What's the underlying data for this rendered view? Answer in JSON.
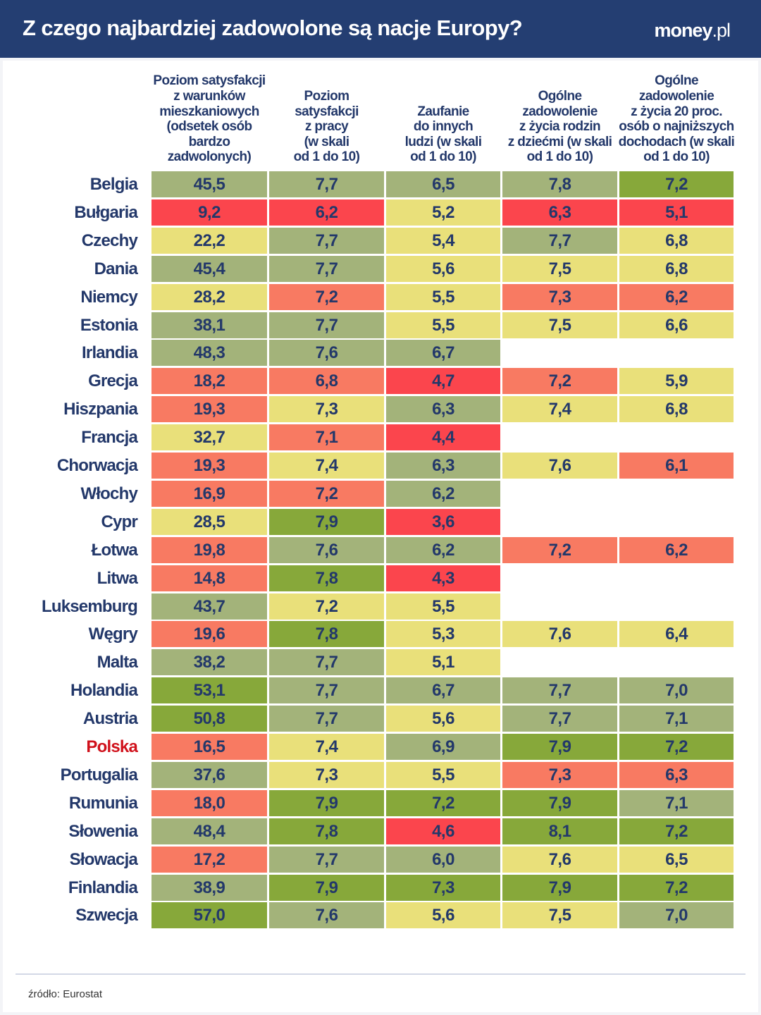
{
  "header": {
    "title": "Z czego najbardziej zadowolone są nacje Europy?",
    "logo_main": "money",
    "logo_suffix": ".pl"
  },
  "footer": {
    "source": "źródło: Eurostat"
  },
  "colors": {
    "g": "#87a83a",
    "s": "#a3b37a",
    "y": "#e9e07a",
    "o": "#f87a62",
    "r": "#fb454d",
    "highlight_country": "#d0111b"
  },
  "chart_data": {
    "type": "table",
    "columns": [
      "Poziom satysfakcji\nz warunków\nmieszkaniowych\n(odsetek osób bardzo\nzadwolonych)",
      "Poziom\nsatysfakcji\nz pracy\n(w skali\nod 1 do 10)",
      "Zaufanie\ndo innych\nludzi (w skali\nod 1 do 10)",
      "Ogólne\nzadowolenie\nz życia rodzin\nz dziećmi (w skali\nod 1 do 10)",
      "Ogólne\nzadowolenie\nz życia 20 proc.\nosób o najniższych\ndochodach (w skali\nod 1 do 10)"
    ],
    "highlight": "Polska",
    "rows": [
      {
        "country": "Belgia",
        "values": [
          "45,5",
          "7,7",
          "6,5",
          "7,8",
          "7,2"
        ],
        "levels": [
          "s",
          "s",
          "s",
          "s",
          "g"
        ]
      },
      {
        "country": "Bułgaria",
        "values": [
          "9,2",
          "6,2",
          "5,2",
          "6,3",
          "5,1"
        ],
        "levels": [
          "r",
          "r",
          "y",
          "r",
          "r"
        ]
      },
      {
        "country": "Czechy",
        "values": [
          "22,2",
          "7,7",
          "5,4",
          "7,7",
          "6,8"
        ],
        "levels": [
          "y",
          "s",
          "y",
          "s",
          "y"
        ]
      },
      {
        "country": "Dania",
        "values": [
          "45,4",
          "7,7",
          "5,6",
          "7,5",
          "6,8"
        ],
        "levels": [
          "s",
          "s",
          "y",
          "y",
          "y"
        ]
      },
      {
        "country": "Niemcy",
        "values": [
          "28,2",
          "7,2",
          "5,5",
          "7,3",
          "6,2"
        ],
        "levels": [
          "y",
          "o",
          "y",
          "o",
          "o"
        ]
      },
      {
        "country": "Estonia",
        "values": [
          "38,1",
          "7,7",
          "5,5",
          "7,5",
          "6,6"
        ],
        "levels": [
          "s",
          "s",
          "y",
          "y",
          "y"
        ]
      },
      {
        "country": "Irlandia",
        "values": [
          "48,3",
          "7,6",
          "6,7",
          null,
          null
        ],
        "levels": [
          "s",
          "s",
          "s",
          null,
          null
        ]
      },
      {
        "country": "Grecja",
        "values": [
          "18,2",
          "6,8",
          "4,7",
          "7,2",
          "5,9"
        ],
        "levels": [
          "o",
          "o",
          "r",
          "o",
          "y"
        ]
      },
      {
        "country": "Hiszpania",
        "values": [
          "19,3",
          "7,3",
          "6,3",
          "7,4",
          "6,8"
        ],
        "levels": [
          "o",
          "y",
          "s",
          "y",
          "y"
        ]
      },
      {
        "country": "Francja",
        "values": [
          "32,7",
          "7,1",
          "4,4",
          null,
          null
        ],
        "levels": [
          "y",
          "o",
          "r",
          null,
          null
        ]
      },
      {
        "country": "Chorwacja",
        "values": [
          "19,3",
          "7,4",
          "6,3",
          "7,6",
          "6,1"
        ],
        "levels": [
          "o",
          "y",
          "s",
          "y",
          "o"
        ]
      },
      {
        "country": "Włochy",
        "values": [
          "16,9",
          "7,2",
          "6,2",
          null,
          null
        ],
        "levels": [
          "o",
          "o",
          "s",
          null,
          null
        ]
      },
      {
        "country": "Cypr",
        "values": [
          "28,5",
          "7,9",
          "3,6",
          null,
          null
        ],
        "levels": [
          "y",
          "g",
          "r",
          null,
          null
        ]
      },
      {
        "country": "Łotwa",
        "values": [
          "19,8",
          "7,6",
          "6,2",
          "7,2",
          "6,2"
        ],
        "levels": [
          "o",
          "s",
          "s",
          "o",
          "o"
        ]
      },
      {
        "country": "Litwa",
        "values": [
          "14,8",
          "7,8",
          "4,3",
          null,
          null
        ],
        "levels": [
          "o",
          "g",
          "r",
          null,
          null
        ]
      },
      {
        "country": "Luksemburg",
        "values": [
          "43,7",
          "7,2",
          "5,5",
          null,
          null
        ],
        "levels": [
          "s",
          "y",
          "y",
          null,
          null
        ]
      },
      {
        "country": "Węgry",
        "values": [
          "19,6",
          "7,8",
          "5,3",
          "7,6",
          "6,4"
        ],
        "levels": [
          "o",
          "g",
          "y",
          "y",
          "y"
        ]
      },
      {
        "country": "Malta",
        "values": [
          "38,2",
          "7,7",
          "5,1",
          null,
          null
        ],
        "levels": [
          "s",
          "s",
          "y",
          null,
          null
        ]
      },
      {
        "country": "Holandia",
        "values": [
          "53,1",
          "7,7",
          "6,7",
          "7,7",
          "7,0"
        ],
        "levels": [
          "g",
          "s",
          "s",
          "s",
          "s"
        ]
      },
      {
        "country": "Austria",
        "values": [
          "50,8",
          "7,7",
          "5,6",
          "7,7",
          "7,1"
        ],
        "levels": [
          "g",
          "s",
          "y",
          "s",
          "s"
        ]
      },
      {
        "country": "Polska",
        "values": [
          "16,5",
          "7,4",
          "6,9",
          "7,9",
          "7,2"
        ],
        "levels": [
          "o",
          "y",
          "s",
          "g",
          "g"
        ]
      },
      {
        "country": "Portugalia",
        "values": [
          "37,6",
          "7,3",
          "5,5",
          "7,3",
          "6,3"
        ],
        "levels": [
          "s",
          "y",
          "y",
          "o",
          "o"
        ]
      },
      {
        "country": "Rumunia",
        "values": [
          "18,0",
          "7,9",
          "7,2",
          "7,9",
          "7,1"
        ],
        "levels": [
          "o",
          "g",
          "g",
          "g",
          "s"
        ]
      },
      {
        "country": "Słowenia",
        "values": [
          "48,4",
          "7,8",
          "4,6",
          "8,1",
          "7,2"
        ],
        "levels": [
          "s",
          "g",
          "r",
          "g",
          "g"
        ]
      },
      {
        "country": "Słowacja",
        "values": [
          "17,2",
          "7,7",
          "6,0",
          "7,6",
          "6,5"
        ],
        "levels": [
          "o",
          "s",
          "s",
          "y",
          "y"
        ]
      },
      {
        "country": "Finlandia",
        "values": [
          "38,9",
          "7,9",
          "7,3",
          "7,9",
          "7,2"
        ],
        "levels": [
          "s",
          "g",
          "g",
          "g",
          "g"
        ]
      },
      {
        "country": "Szwecja",
        "values": [
          "57,0",
          "7,6",
          "5,6",
          "7,5",
          "7,0"
        ],
        "levels": [
          "g",
          "s",
          "y",
          "y",
          "s"
        ]
      }
    ]
  }
}
